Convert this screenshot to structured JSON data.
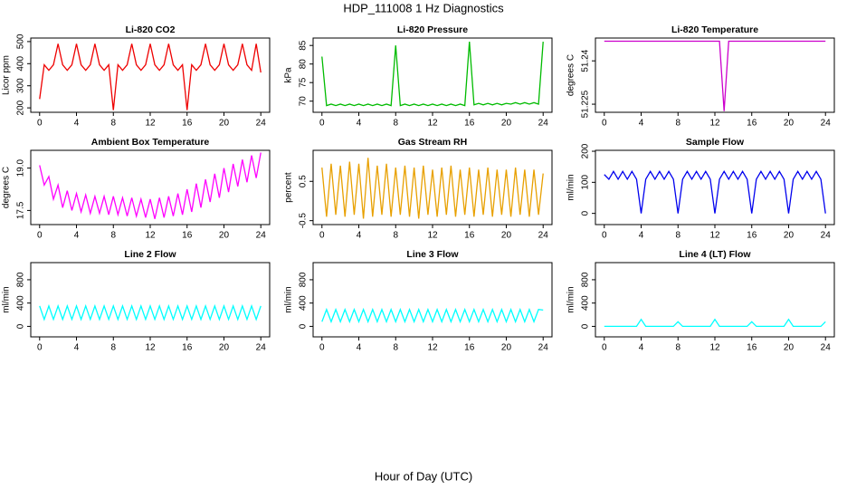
{
  "title": "HDP_111008  1 Hz Diagnostics",
  "xlabel": "Hour of Day (UTC)",
  "chart_data": [
    {
      "type": "line",
      "title": "Li-820 CO2",
      "ylabel": "Licor ppm",
      "color": "#ee0000",
      "x": [
        0,
        0.5,
        1,
        1.5,
        2,
        2.5,
        3,
        3.5,
        4,
        4.5,
        5,
        5.5,
        6,
        6.5,
        7,
        7.5,
        8,
        8.5,
        9,
        9.5,
        10,
        10.5,
        11,
        11.5,
        12,
        12.5,
        13,
        13.5,
        14,
        14.5,
        15,
        15.5,
        16,
        16.5,
        17,
        17.5,
        18,
        18.5,
        19,
        19.5,
        20,
        20.5,
        21,
        21.5,
        22,
        22.5,
        23,
        23.5,
        24
      ],
      "values": [
        240,
        395,
        370,
        395,
        490,
        395,
        370,
        395,
        490,
        395,
        370,
        395,
        490,
        395,
        370,
        395,
        190,
        395,
        370,
        395,
        490,
        395,
        370,
        395,
        490,
        395,
        370,
        395,
        490,
        395,
        370,
        395,
        190,
        395,
        370,
        395,
        490,
        395,
        370,
        395,
        490,
        395,
        370,
        395,
        490,
        395,
        370,
        490,
        360
      ],
      "xlim": [
        -0.96,
        24.96
      ],
      "xticks": [
        0,
        4,
        8,
        12,
        16,
        20,
        24
      ],
      "ylim": [
        180,
        516
      ],
      "yticks": [
        200,
        300,
        400,
        500
      ]
    },
    {
      "type": "line",
      "title": "Li-820 Pressure",
      "ylabel": "kPa",
      "color": "#00bb00",
      "x": [
        0,
        0.5,
        1,
        1.5,
        2,
        2.5,
        3,
        3.5,
        4,
        4.5,
        5,
        5.5,
        6,
        6.5,
        7,
        7.5,
        8,
        8.5,
        9,
        9.5,
        10,
        10.5,
        11,
        11.5,
        12,
        12.5,
        13,
        13.5,
        14,
        14.5,
        15,
        15.5,
        16,
        16.5,
        17,
        17.5,
        18,
        18.5,
        19,
        19.5,
        20,
        20.5,
        21,
        21.5,
        22,
        22.5,
        23,
        23.5,
        24
      ],
      "values": [
        82,
        68.8,
        69.2,
        68.8,
        69.2,
        68.8,
        69.2,
        68.8,
        69.2,
        68.8,
        69.2,
        68.8,
        69.2,
        68.8,
        69.2,
        68.8,
        85,
        68.8,
        69.2,
        68.8,
        69.2,
        68.8,
        69.2,
        68.8,
        69.2,
        68.8,
        69.2,
        68.8,
        69.2,
        68.8,
        69.2,
        68.8,
        86,
        69,
        69.4,
        69,
        69.4,
        69,
        69.4,
        69,
        69.4,
        69.2,
        69.6,
        69.2,
        69.6,
        69.2,
        69.6,
        69.2,
        86
      ],
      "xlim": [
        -0.96,
        24.96
      ],
      "xticks": [
        0,
        4,
        8,
        12,
        16,
        20,
        24
      ],
      "ylim": [
        67,
        87
      ],
      "yticks": [
        70,
        75,
        80,
        85
      ]
    },
    {
      "type": "line",
      "title": "Li-820 Temperature",
      "ylabel": "degrees C",
      "color": "#cc00cc",
      "x": [
        0,
        0.5,
        1,
        1.5,
        2,
        2.5,
        3,
        3.5,
        4,
        4.5,
        5,
        5.5,
        6,
        6.5,
        7,
        7.5,
        8,
        8.5,
        9,
        9.5,
        10,
        10.5,
        11,
        11.5,
        12,
        12.5,
        13,
        13.5,
        14,
        14.5,
        15,
        15.5,
        16,
        16.5,
        17,
        17.5,
        18,
        18.5,
        19,
        19.5,
        20,
        20.5,
        21,
        21.5,
        22,
        22.5,
        23,
        23.5,
        24
      ],
      "values": [
        51.2468,
        51.2468,
        51.2468,
        51.2468,
        51.2468,
        51.2468,
        51.2468,
        51.2468,
        51.2468,
        51.2468,
        51.2468,
        51.2468,
        51.2468,
        51.2468,
        51.2468,
        51.2468,
        51.2468,
        51.2468,
        51.2468,
        51.2468,
        51.2468,
        51.2468,
        51.2468,
        51.2468,
        51.2468,
        51.2468,
        51.2226,
        51.2468,
        51.2468,
        51.2468,
        51.2468,
        51.2468,
        51.2468,
        51.2468,
        51.2468,
        51.2468,
        51.2468,
        51.2468,
        51.2468,
        51.2468,
        51.2468,
        51.2468,
        51.2468,
        51.2468,
        51.2468,
        51.2468,
        51.2468,
        51.2468,
        51.2468
      ],
      "xlim": [
        -0.96,
        24.96
      ],
      "xticks": [
        0,
        4,
        8,
        12,
        16,
        20,
        24
      ],
      "ylim": [
        51.2222,
        51.2479
      ],
      "yticks": [
        51.225,
        51.24
      ]
    },
    {
      "type": "line",
      "title": "Ambient Box Temperature",
      "ylabel": "degrees C",
      "color": "#ff00ff",
      "x": [
        0,
        0.5,
        1,
        1.5,
        2,
        2.5,
        3,
        3.5,
        4,
        4.5,
        5,
        5.5,
        6,
        6.5,
        7,
        7.5,
        8,
        8.5,
        9,
        9.5,
        10,
        10.5,
        11,
        11.5,
        12,
        12.5,
        13,
        13.5,
        14,
        14.5,
        15,
        15.5,
        16,
        16.5,
        17,
        17.5,
        18,
        18.5,
        19,
        19.5,
        20,
        20.5,
        21,
        21.5,
        22,
        22.5,
        23,
        23.5,
        24
      ],
      "values": [
        19.1,
        18.4,
        18.7,
        17.9,
        18.4,
        17.6,
        18.2,
        17.5,
        18.1,
        17.45,
        18.05,
        17.4,
        18,
        17.4,
        18,
        17.35,
        18,
        17.35,
        17.95,
        17.3,
        17.95,
        17.3,
        17.9,
        17.25,
        17.9,
        17.2,
        17.95,
        17.25,
        18,
        17.3,
        18.1,
        17.35,
        18.25,
        17.45,
        18.45,
        17.6,
        18.6,
        17.8,
        18.8,
        17.95,
        19,
        18.15,
        19.15,
        18.35,
        19.3,
        18.5,
        19.45,
        18.65,
        19.55
      ],
      "xlim": [
        -0.96,
        24.96
      ],
      "xticks": [
        0,
        4,
        8,
        12,
        16,
        20,
        24
      ],
      "ylim": [
        17,
        19.63
      ],
      "yticks": [
        17.5,
        {
          "value": 19,
          "label": "19.0"
        }
      ]
    },
    {
      "type": "line",
      "title": "Gas Stream RH",
      "ylabel": "percent",
      "color": "#e8a000",
      "x": [
        0,
        0.5,
        1,
        1.5,
        2,
        2.5,
        3,
        3.5,
        4,
        4.5,
        5,
        5.5,
        6,
        6.5,
        7,
        7.5,
        8,
        8.5,
        9,
        9.5,
        10,
        10.5,
        11,
        11.5,
        12,
        12.5,
        13,
        13.5,
        14,
        14.5,
        15,
        15.5,
        16,
        16.5,
        17,
        17.5,
        18,
        18.5,
        19,
        19.5,
        20,
        20.5,
        21,
        21.5,
        22,
        22.5,
        23,
        23.5,
        24
      ],
      "values": [
        0.85,
        -0.4,
        0.95,
        -0.35,
        0.9,
        -0.4,
        1.0,
        -0.35,
        0.95,
        -0.45,
        1.1,
        -0.4,
        0.9,
        -0.35,
        0.95,
        -0.4,
        0.85,
        -0.35,
        0.9,
        -0.4,
        0.85,
        -0.45,
        0.9,
        -0.35,
        0.8,
        -0.4,
        0.85,
        -0.35,
        0.9,
        -0.4,
        0.8,
        -0.35,
        0.85,
        -0.4,
        0.8,
        -0.35,
        0.85,
        -0.4,
        0.8,
        -0.35,
        0.8,
        -0.4,
        0.85,
        -0.35,
        0.8,
        -0.4,
        0.8,
        -0.35,
        0.7
      ],
      "xlim": [
        -0.96,
        24.96
      ],
      "xticks": [
        0,
        4,
        8,
        12,
        16,
        20,
        24
      ],
      "ylim": [
        -0.6,
        1.29
      ],
      "yticks": [
        -0.5,
        0.5
      ]
    },
    {
      "type": "line",
      "title": "Sample Flow",
      "ylabel": "ml/min",
      "color": "#0000ee",
      "x": [
        0,
        0.5,
        1,
        1.5,
        2,
        2.5,
        3,
        3.5,
        4,
        4.5,
        5,
        5.5,
        6,
        6.5,
        7,
        7.5,
        8,
        8.5,
        9,
        9.5,
        10,
        10.5,
        11,
        11.5,
        12,
        12.5,
        13,
        13.5,
        14,
        14.5,
        15,
        15.5,
        16,
        16.5,
        17,
        17.5,
        18,
        18.5,
        19,
        19.5,
        20,
        20.5,
        21,
        21.5,
        22,
        22.5,
        23,
        23.5,
        24
      ],
      "values": [
        125,
        110,
        135,
        110,
        135,
        110,
        135,
        110,
        0,
        110,
        135,
        110,
        135,
        110,
        135,
        110,
        0,
        110,
        135,
        110,
        135,
        110,
        135,
        110,
        0,
        110,
        135,
        110,
        135,
        110,
        135,
        110,
        0,
        110,
        135,
        110,
        135,
        110,
        135,
        110,
        0,
        110,
        135,
        110,
        135,
        110,
        135,
        110,
        0
      ],
      "xlim": [
        -0.96,
        24.96
      ],
      "xticks": [
        0,
        4,
        8,
        12,
        16,
        20,
        24
      ],
      "ylim": [
        -36,
        203
      ],
      "yticks": [
        0,
        100,
        200
      ]
    },
    {
      "type": "line",
      "title": "Line 2 Flow",
      "ylabel": "ml/min",
      "color": "#00ffff",
      "x": [
        0,
        0.5,
        1,
        1.5,
        2,
        2.5,
        3,
        3.5,
        4,
        4.5,
        5,
        5.5,
        6,
        6.5,
        7,
        7.5,
        8,
        8.5,
        9,
        9.5,
        10,
        10.5,
        11,
        11.5,
        12,
        12.5,
        13,
        13.5,
        14,
        14.5,
        15,
        15.5,
        16,
        16.5,
        17,
        17.5,
        18,
        18.5,
        19,
        19.5,
        20,
        20.5,
        21,
        21.5,
        22,
        22.5,
        23,
        23.5,
        24
      ],
      "values": [
        350,
        120,
        350,
        120,
        350,
        120,
        350,
        120,
        350,
        120,
        350,
        120,
        350,
        120,
        350,
        120,
        350,
        120,
        350,
        120,
        350,
        120,
        350,
        120,
        350,
        120,
        350,
        120,
        350,
        120,
        350,
        120,
        350,
        120,
        350,
        120,
        350,
        120,
        350,
        120,
        350,
        120,
        350,
        120,
        350,
        120,
        350,
        120,
        350
      ],
      "xlim": [
        -0.96,
        24.96
      ],
      "xticks": [
        0,
        4,
        8,
        12,
        16,
        20,
        24
      ],
      "ylim": [
        -180,
        1094
      ],
      "yticks": [
        0,
        400,
        800
      ]
    },
    {
      "type": "line",
      "title": "Line 3 Flow",
      "ylabel": "ml/min",
      "color": "#00ffff",
      "x": [
        0,
        0.5,
        1,
        1.5,
        2,
        2.5,
        3,
        3.5,
        4,
        4.5,
        5,
        5.5,
        6,
        6.5,
        7,
        7.5,
        8,
        8.5,
        9,
        9.5,
        10,
        10.5,
        11,
        11.5,
        12,
        12.5,
        13,
        13.5,
        14,
        14.5,
        15,
        15.5,
        16,
        16.5,
        17,
        17.5,
        18,
        18.5,
        19,
        19.5,
        20,
        20.5,
        21,
        21.5,
        22,
        22.5,
        23,
        23.5,
        24
      ],
      "values": [
        80,
        290,
        80,
        290,
        80,
        290,
        80,
        290,
        80,
        290,
        80,
        290,
        80,
        290,
        80,
        290,
        80,
        290,
        80,
        290,
        80,
        290,
        80,
        290,
        80,
        290,
        80,
        290,
        80,
        290,
        80,
        290,
        80,
        290,
        80,
        290,
        80,
        290,
        80,
        290,
        80,
        290,
        80,
        290,
        80,
        290,
        80,
        290,
        280
      ],
      "xlim": [
        -0.96,
        24.96
      ],
      "xticks": [
        0,
        4,
        8,
        12,
        16,
        20,
        24
      ],
      "ylim": [
        -180,
        1094
      ],
      "yticks": [
        0,
        400,
        800
      ]
    },
    {
      "type": "line",
      "title": "Line 4 (LT) Flow",
      "ylabel": "ml/min",
      "color": "#00ffff",
      "x": [
        0,
        0.5,
        1,
        1.5,
        2,
        2.5,
        3,
        3.5,
        4,
        4.5,
        5,
        5.5,
        6,
        6.5,
        7,
        7.5,
        8,
        8.5,
        9,
        9.5,
        10,
        10.5,
        11,
        11.5,
        12,
        12.5,
        13,
        13.5,
        14,
        14.5,
        15,
        15.5,
        16,
        16.5,
        17,
        17.5,
        18,
        18.5,
        19,
        19.5,
        20,
        20.5,
        21,
        21.5,
        22,
        22.5,
        23,
        23.5,
        24
      ],
      "values": [
        0,
        0,
        0,
        0,
        0,
        0,
        0,
        0,
        120,
        0,
        0,
        0,
        0,
        0,
        0,
        0,
        80,
        0,
        0,
        0,
        0,
        0,
        0,
        0,
        120,
        0,
        0,
        0,
        0,
        0,
        0,
        0,
        80,
        0,
        0,
        0,
        0,
        0,
        0,
        0,
        120,
        0,
        0,
        0,
        0,
        0,
        0,
        0,
        80
      ],
      "xlim": [
        -0.96,
        24.96
      ],
      "xticks": [
        0,
        4,
        8,
        12,
        16,
        20,
        24
      ],
      "ylim": [
        -180,
        1094
      ],
      "yticks": [
        0,
        400,
        800
      ]
    }
  ]
}
